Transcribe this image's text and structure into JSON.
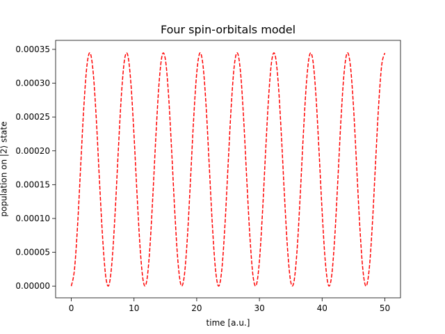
{
  "chart_data": {
    "type": "line",
    "title": "Four spin-orbitals model",
    "x_label": "time [a.u.]",
    "y_label": "population on |2⟩ state",
    "xlim": [
      -2.5,
      52.5
    ],
    "ylim": [
      -1.73e-05,
      0.0003633
    ],
    "xticks": [
      0,
      10,
      20,
      30,
      40,
      50
    ],
    "yticks": [
      {
        "value": 0,
        "label": "0.00000"
      },
      {
        "value": 5e-05,
        "label": "0.00005"
      },
      {
        "value": 0.0001,
        "label": "0.00010"
      },
      {
        "value": 0.00015,
        "label": "0.00015"
      },
      {
        "value": 0.0002,
        "label": "0.00020"
      },
      {
        "value": 0.00025,
        "label": "0.00025"
      },
      {
        "value": 0.0003,
        "label": "0.00030"
      },
      {
        "value": 0.00035,
        "label": "0.00035"
      }
    ],
    "x": [
      0,
      0.5,
      1,
      1.5,
      2,
      2.5,
      3,
      3.5,
      4,
      4.5,
      5,
      5.5,
      6,
      6.5,
      7,
      7.5,
      8,
      8.5,
      9,
      9.5,
      10,
      10.5,
      11,
      11.5,
      12,
      12.5,
      13,
      13.5,
      14,
      14.5,
      15,
      15.5,
      16,
      16.5,
      17,
      17.5,
      18,
      18.5,
      19,
      19.5,
      20,
      20.5,
      21,
      21.5,
      22,
      22.5,
      23,
      23.5,
      24,
      24.5,
      25,
      25.5,
      26,
      26.5,
      27,
      27.5,
      28,
      28.5,
      29,
      29.5,
      30,
      30.5,
      31,
      31.5,
      32,
      32.5,
      33,
      33.5,
      34,
      34.5,
      35,
      35.5,
      36,
      36.5,
      37,
      37.5,
      38,
      38.5,
      39,
      39.5,
      40,
      40.5,
      41,
      41.5,
      42,
      42.5,
      43,
      43.5,
      44,
      44.5,
      45,
      45.5,
      46,
      46.5,
      47,
      47.5,
      48,
      48.5,
      49,
      49.5,
      50
    ],
    "series": [
      {
        "color": "#ff0000",
        "dashed": true,
        "values": [
          0,
          2.41e-05,
          8.96e-05,
          0.0001783,
          0.0002652,
          0.0003265,
          0.0003446,
          0.0003149,
          0.0002448,
          0.0001546,
          7.08e-05,
          1.37e-05,
          1.5e-06,
          3.71e-05,
          0.0001105,
          0.0002012,
          0.0002839,
          0.0003355,
          0.0003416,
          0.0003004,
          0.0002233,
          0.0001328,
          5.31e-05,
          6.1e-06,
          6.1e-06,
          5.26e-05,
          0.0001326,
          0.0002235,
          0.0003006,
          0.0003416,
          0.0003354,
          0.0002837,
          0.000201,
          0.0001105,
          3.72e-05,
          1.5e-06,
          1.37e-05,
          7.02e-05,
          0.0001553,
          0.0002452,
          0.0003147,
          0.0003446,
          0.0003266,
          0.0002657,
          0.0001782,
          8.98e-05,
          2.42e-05,
          0,
          2.41e-05,
          8.96e-05,
          0.0001783,
          0.0002652,
          0.0003265,
          0.0003446,
          0.0003149,
          0.0002448,
          0.0001546,
          7.08e-05,
          1.37e-05,
          1.5e-06,
          3.71e-05,
          0.0001105,
          0.0002012,
          0.0002839,
          0.0003355,
          0.0003416,
          0.0003004,
          0.0002233,
          0.0001328,
          5.31e-05,
          6.1e-06,
          6.1e-06,
          5.26e-05,
          0.0001326,
          0.0002235,
          0.0003006,
          0.0003416,
          0.0003354,
          0.0002837,
          0.000201,
          0.0001105,
          3.72e-05,
          1.5e-06,
          1.37e-05,
          7.02e-05,
          0.0001553,
          0.0002452,
          0.0003147,
          0.0003446,
          0.0003266,
          0.0002657,
          0.0001782,
          8.98e-05,
          2.42e-05,
          0,
          2.41e-05,
          8.96e-05,
          0.0001783,
          0.0002652,
          0.0003265,
          0.0003446
        ]
      }
    ]
  }
}
